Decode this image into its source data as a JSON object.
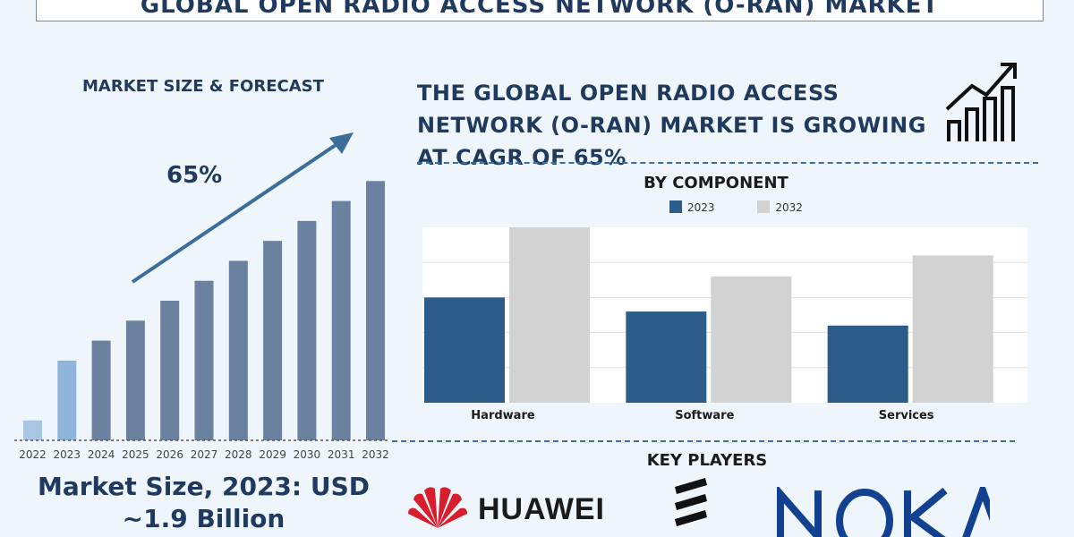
{
  "header": {
    "title": "GLOBAL OPEN RADIO ACCESS NETWORK (O-RAN) MARKET"
  },
  "forecast": {
    "title": "MARKET SIZE & FORECAST",
    "cagr_label": "65%",
    "market_size_text": "Market Size, 2023: USD ~1.9 Billion"
  },
  "headline": "THE GLOBAL OPEN RADIO ACCESS NETWORK (O-RAN) MARKET IS GROWING AT CAGR OF 65%",
  "icons": {
    "growth": "growth-chart-icon"
  },
  "components": {
    "title": "BY COMPONENT"
  },
  "key_players": {
    "title": "KEY PLAYERS",
    "players": [
      {
        "name": "HUAWEI",
        "icon": "huawei-logo"
      },
      {
        "name": "Ericsson",
        "icon": "ericsson-logo"
      },
      {
        "name": "NOKIA",
        "icon": "nokia-logo"
      }
    ]
  },
  "colors": {
    "navy": "#1f3a5e",
    "bar_forecast": "#6a82a0",
    "bar_2023": "#8fb5da",
    "bar_2022": "#a8c6e4",
    "comp_2023": "#2c5c8a",
    "comp_2032": "#d2d2d2",
    "huawei_red": "#d81e2c",
    "nokia_blue": "#124191"
  },
  "chart_data": [
    {
      "type": "bar",
      "title": "MARKET SIZE & FORECAST",
      "categories": [
        "2022",
        "2023",
        "2024",
        "2025",
        "2026",
        "2027",
        "2028",
        "2029",
        "2030",
        "2031",
        "2032"
      ],
      "values": [
        1,
        4,
        5,
        6,
        7,
        8,
        9,
        10,
        11,
        12,
        13
      ],
      "ylim": [
        0,
        14
      ],
      "annotation": "65%",
      "grid": false
    },
    {
      "type": "bar",
      "title": "BY COMPONENT",
      "categories": [
        "Hardware",
        "Software",
        "Services"
      ],
      "series": [
        {
          "name": "2023",
          "values": [
            3.0,
            2.6,
            2.2
          ]
        },
        {
          "name": "2032",
          "values": [
            5.0,
            3.6,
            4.2
          ]
        }
      ],
      "ylim": [
        0,
        5
      ],
      "grid": true,
      "legend": "top-center"
    }
  ]
}
